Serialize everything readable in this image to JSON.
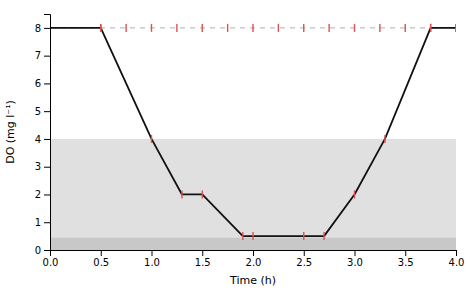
{
  "chart_data": {
    "type": "line",
    "xlabel": "Time (h)",
    "ylabel": "DO (mg l⁻¹)",
    "xlim": [
      0,
      4
    ],
    "ylim": [
      0,
      8.5
    ],
    "xticks": [
      {
        "value": 0,
        "label": "0.0"
      },
      0.5,
      {
        "value": 1.0,
        "label": "1.0"
      },
      1.5,
      {
        "value": 2.0,
        "label": "2.0"
      },
      2.5,
      {
        "value": 3.0,
        "label": "3.0"
      },
      3.5,
      {
        "value": 4.0,
        "label": "4.0"
      }
    ],
    "yticks": [
      0,
      1,
      2,
      3,
      4,
      5,
      6,
      7,
      8
    ],
    "grid": false,
    "bands": [
      {
        "from": 0.45,
        "to": 4.0,
        "color": "#d3d3d3"
      },
      {
        "from": 0,
        "to": 0.45,
        "color": "#b0b0b0"
      }
    ],
    "reference_lines": [
      {
        "y": 8.0,
        "color": "#b0b0b0",
        "line_style": "dashed"
      }
    ],
    "series": [
      {
        "type": "line",
        "color": "#111111",
        "line_style": "solid",
        "x": [
          0,
          0.5,
          1.0,
          1.3,
          1.5,
          1.9,
          2.7,
          3.0,
          3.3,
          3.75,
          4.0
        ],
        "values": [
          8.0,
          8.0,
          4.0,
          2.0,
          2.0,
          0.5,
          0.5,
          2.0,
          4.0,
          8.0,
          8.0
        ]
      },
      {
        "type": "scatter",
        "marker": "tick",
        "color": "#e05050",
        "x": [
          0.5,
          1.0,
          1.3,
          1.5,
          1.9,
          2.0,
          2.5,
          2.7,
          3.0,
          3.3,
          3.75,
          4.0
        ],
        "values": [
          8.0,
          4.0,
          2.0,
          2.0,
          0.5,
          0.5,
          0.5,
          0.5,
          2.0,
          4.0,
          8.0,
          8.0
        ]
      },
      {
        "type": "scatter",
        "marker": "tick",
        "color": "#e05050",
        "x": [
          0.5,
          0.75,
          1.0,
          1.25,
          1.5,
          1.75,
          2.0,
          2.25,
          2.5,
          2.75,
          3.0,
          3.25,
          3.5,
          3.75,
          4.0
        ],
        "values": [
          8.0,
          8.0,
          8.0,
          8.0,
          8.0,
          8.0,
          8.0,
          8.0,
          8.0,
          8.0,
          8.0,
          8.0,
          8.0,
          8.0,
          8.0
        ]
      }
    ]
  }
}
